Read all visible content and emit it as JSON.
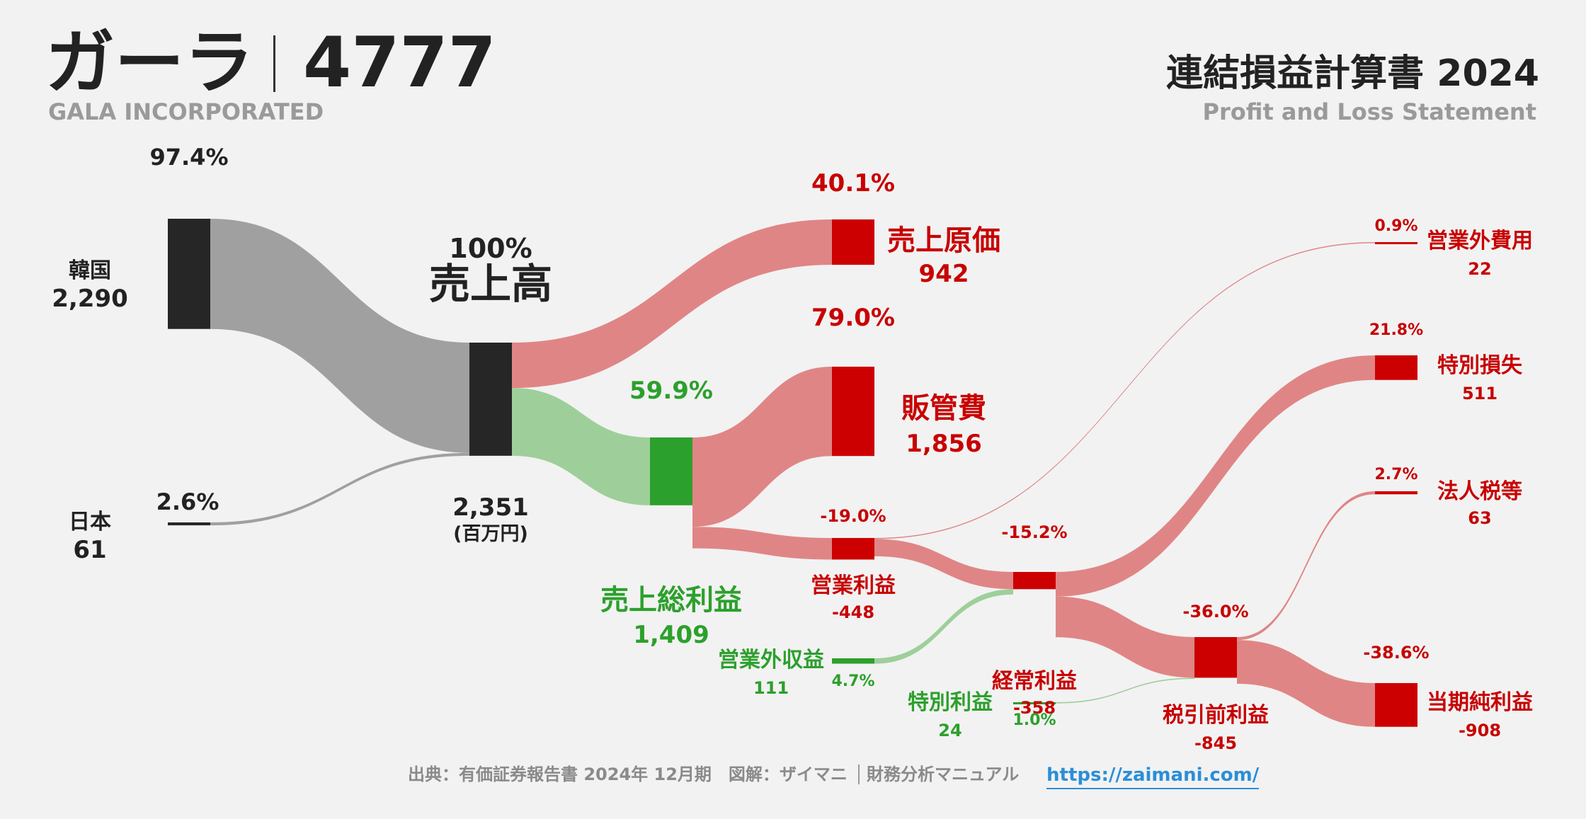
{
  "header": {
    "company": "ガーラ",
    "code": "4777",
    "english": "GALA INCORPORATED",
    "title": "連結損益計算書 2024",
    "subtitle": "Profit and Loss Statement"
  },
  "footer": {
    "source": "出典：有価証券報告書 2024年 12月期　図解：ザイマニ",
    "brand": "財務分析マニュアル",
    "url": "https://zaimani.com/"
  },
  "colors": {
    "revenue": "#262626",
    "revenue_flow": "#a0a0a0",
    "cost": "#cc0000",
    "cost_flow": "#e08585",
    "profit": "#2ca02c",
    "profit_flow": "#9ecf9a",
    "link": "#2a8fd8"
  },
  "chart_data": {
    "type": "sankey",
    "unit": "(百万円)",
    "nodes": [
      {
        "id": "korea",
        "label": "韓国",
        "value": "2,290",
        "pct": "97.4%"
      },
      {
        "id": "japan",
        "label": "日本",
        "value": "61",
        "pct": "2.6%"
      },
      {
        "id": "revenue",
        "label": "売上高",
        "value": "2,351",
        "pct": "100%"
      },
      {
        "id": "cogs",
        "label": "売上原価",
        "value": "942",
        "pct": "40.1%"
      },
      {
        "id": "gross",
        "label": "売上総利益",
        "value": "1,409",
        "pct": "59.9%"
      },
      {
        "id": "sga",
        "label": "販管費",
        "value": "1,856",
        "pct": "79.0%"
      },
      {
        "id": "op",
        "label": "営業利益",
        "value": "-448",
        "pct": "-19.0%"
      },
      {
        "id": "nonop_inc",
        "label": "営業外収益",
        "value": "111",
        "pct": "4.7%"
      },
      {
        "id": "nonop_exp",
        "label": "営業外費用",
        "value": "22",
        "pct": "0.9%"
      },
      {
        "id": "ordinary",
        "label": "経常利益",
        "value": "-358",
        "pct": "-15.2%"
      },
      {
        "id": "ext_gain",
        "label": "特別利益",
        "value": "24",
        "pct": "1.0%"
      },
      {
        "id": "ext_loss",
        "label": "特別損失",
        "value": "511",
        "pct": "21.8%"
      },
      {
        "id": "pretax",
        "label": "税引前利益",
        "value": "-845",
        "pct": "-36.0%"
      },
      {
        "id": "tax",
        "label": "法人税等",
        "value": "63",
        "pct": "2.7%"
      },
      {
        "id": "net",
        "label": "当期純利益",
        "value": "-908",
        "pct": "-38.6%"
      }
    ],
    "links": [
      {
        "source": "korea",
        "target": "revenue",
        "value": 2290
      },
      {
        "source": "japan",
        "target": "revenue",
        "value": 61
      },
      {
        "source": "revenue",
        "target": "cogs",
        "value": 942
      },
      {
        "source": "revenue",
        "target": "gross",
        "value": 1409
      },
      {
        "source": "gross",
        "target": "sga",
        "value": 1856
      },
      {
        "source": "gross",
        "target": "op",
        "value": 448
      },
      {
        "source": "op",
        "target": "nonop_exp",
        "value": 22
      },
      {
        "source": "op",
        "target": "ordinary",
        "value": 358
      },
      {
        "source": "nonop_inc",
        "target": "ordinary",
        "value": 111
      },
      {
        "source": "ordinary",
        "target": "ext_loss",
        "value": 511
      },
      {
        "source": "ordinary",
        "target": "pretax",
        "value": 845
      },
      {
        "source": "ext_gain",
        "target": "pretax",
        "value": 24
      },
      {
        "source": "pretax",
        "target": "tax",
        "value": 63
      },
      {
        "source": "pretax",
        "target": "net",
        "value": 908
      }
    ]
  }
}
